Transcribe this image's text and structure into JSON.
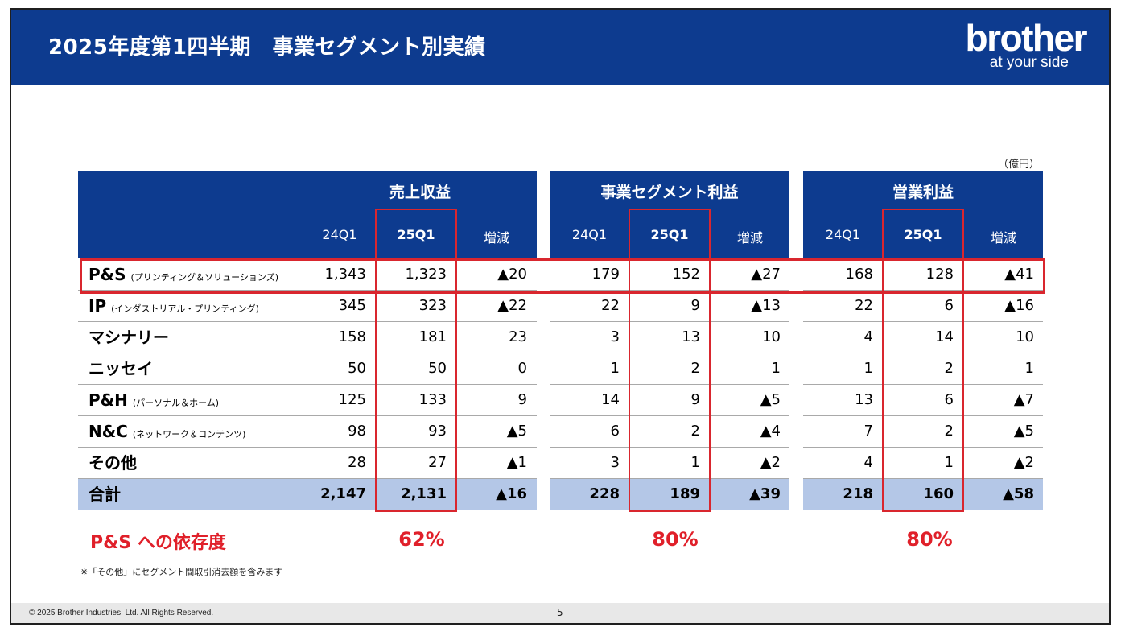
{
  "title": "2025年度第1四半期　事業セグメント別実績",
  "logo": {
    "word": "brother",
    "tagline": "at your side"
  },
  "unit": "（億円）",
  "groups": [
    {
      "title": "売上収益",
      "cols": [
        "24Q1",
        "25Q1",
        "増減"
      ]
    },
    {
      "title": "事業セグメント利益",
      "cols": [
        "24Q1",
        "25Q1",
        "増減"
      ]
    },
    {
      "title": "営業利益",
      "cols": [
        "24Q1",
        "25Q1",
        "増減"
      ]
    }
  ],
  "rows": [
    {
      "name": "P&S",
      "sub": "(プリンティング＆ソリューションズ)",
      "vals": [
        "1,343",
        "1,323",
        "▲20",
        "179",
        "152",
        "▲27",
        "168",
        "128",
        "▲41"
      ]
    },
    {
      "name": "IP",
      "sub": "(インダストリアル・プリンティング)",
      "vals": [
        "345",
        "323",
        "▲22",
        "22",
        "9",
        "▲13",
        "22",
        "6",
        "▲16"
      ]
    },
    {
      "name": "マシナリー",
      "sub": "",
      "vals": [
        "158",
        "181",
        "23",
        "3",
        "13",
        "10",
        "4",
        "14",
        "10"
      ]
    },
    {
      "name": "ニッセイ",
      "sub": "",
      "vals": [
        "50",
        "50",
        "0",
        "1",
        "2",
        "1",
        "1",
        "2",
        "1"
      ]
    },
    {
      "name": "P&H",
      "sub": "(パーソナル＆ホーム)",
      "vals": [
        "125",
        "133",
        "9",
        "14",
        "9",
        "▲5",
        "13",
        "6",
        "▲7"
      ]
    },
    {
      "name": "N&C",
      "sub": "(ネットワーク＆コンテンツ)",
      "vals": [
        "98",
        "93",
        "▲5",
        "6",
        "2",
        "▲4",
        "7",
        "2",
        "▲5"
      ]
    },
    {
      "name": "その他",
      "sub": "",
      "vals": [
        "28",
        "27",
        "▲1",
        "3",
        "1",
        "▲2",
        "4",
        "1",
        "▲2"
      ]
    }
  ],
  "total": {
    "name": "合計",
    "vals": [
      "2,147",
      "2,131",
      "▲16",
      "228",
      "189",
      "▲39",
      "218",
      "160",
      "▲58"
    ]
  },
  "dependency": {
    "label": "P&S への依存度",
    "values": [
      "62%",
      "80%",
      "80%"
    ]
  },
  "footnote": "※「その他」にセグメント間取引消去額を含みます",
  "copyright": "© 2025 Brother Industries, Ltd. All Rights Reserved.",
  "page_number": "5",
  "colors": {
    "header": "#0d3b8f",
    "total_band": "#b4c7e7",
    "highlight": "#d9262e"
  }
}
